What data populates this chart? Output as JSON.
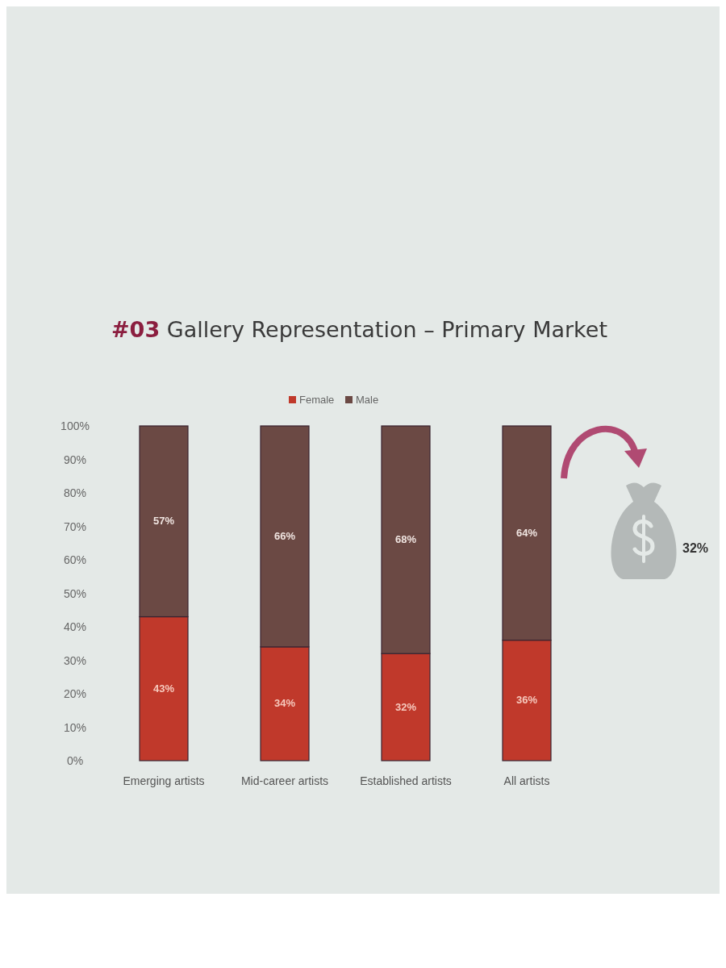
{
  "chart_data": {
    "type": "bar",
    "title": "#03 Gallery Representation – Primary Market",
    "categories": [
      "Emerging artists",
      "Mid-career artists",
      "Established artists",
      "All artists"
    ],
    "series": [
      {
        "name": "Female",
        "color": "#c0392b",
        "values": [
          43,
          34,
          32,
          36
        ],
        "value_labels": [
          "43%",
          "34%",
          "32%",
          "36%"
        ]
      },
      {
        "name": "Male",
        "color": "#6b4944",
        "values": [
          57,
          66,
          68,
          64
        ],
        "value_labels": [
          "57%",
          "66%",
          "68%",
          "64%"
        ]
      }
    ],
    "stacked": true,
    "ylim": [
      0,
      100
    ],
    "yticks": [
      {
        "value": 0,
        "label": "0%"
      },
      {
        "value": 10,
        "label": "10%"
      },
      {
        "value": 20,
        "label": "20%"
      },
      {
        "value": 30,
        "label": "30%"
      },
      {
        "value": 40,
        "label": "40%"
      },
      {
        "value": 50,
        "label": "50%"
      },
      {
        "value": 60,
        "label": "60%"
      },
      {
        "value": 70,
        "label": "70%"
      },
      {
        "value": 80,
        "label": "80%"
      },
      {
        "value": 90,
        "label": "90%"
      },
      {
        "value": 100,
        "label": "100%"
      }
    ],
    "legend": "top",
    "annotations": [
      "32%"
    ]
  }
}
